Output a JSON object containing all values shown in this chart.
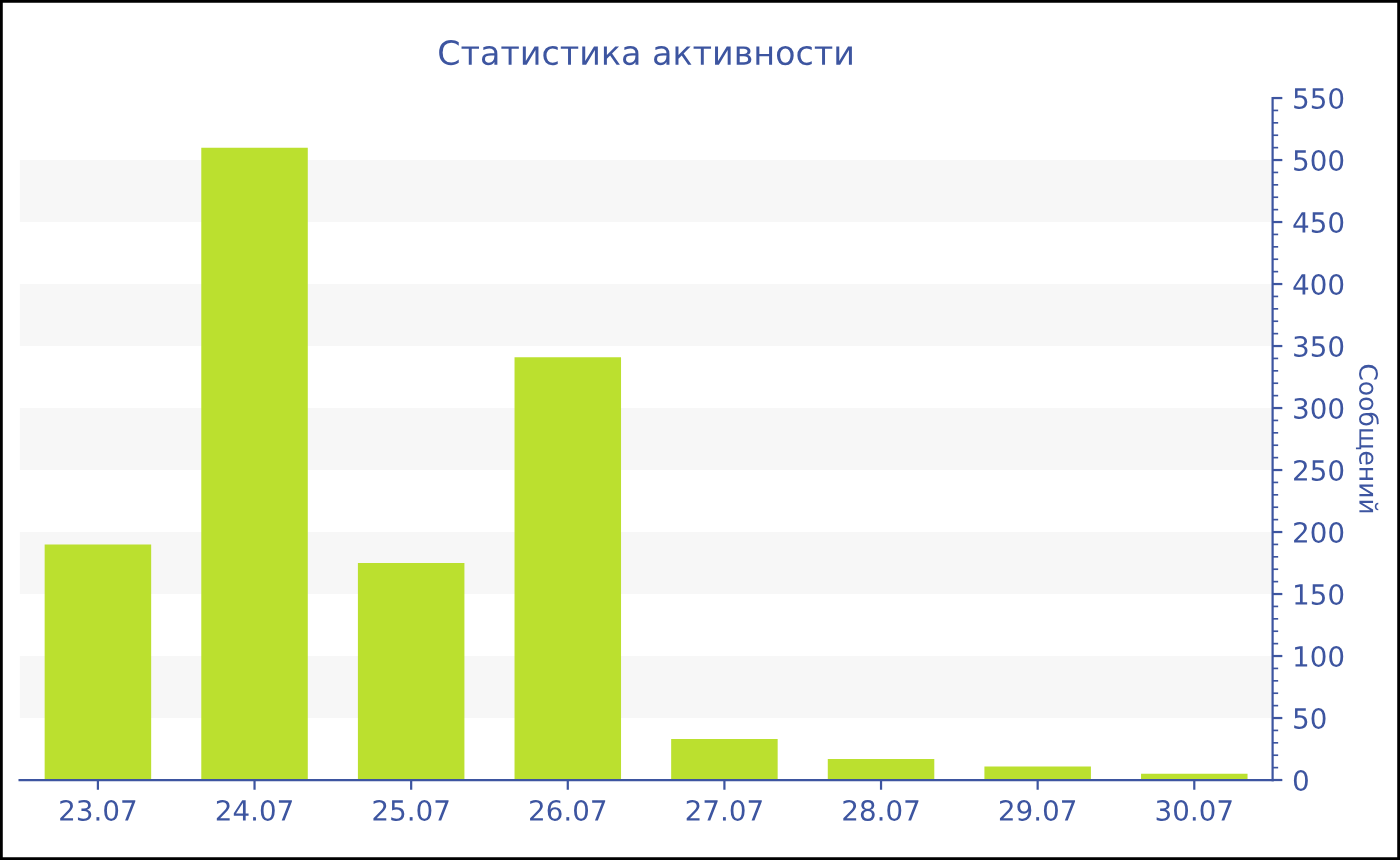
{
  "chart_data": {
    "type": "bar",
    "title": "Статистика активности",
    "ylabel": "Сообщений",
    "categories": [
      "23.07",
      "24.07",
      "25.07",
      "26.07",
      "27.07",
      "28.07",
      "29.07",
      "30.07"
    ],
    "series": [
      {
        "color": "#bbe02f",
        "values": [
          190,
          510,
          175,
          341,
          33,
          17,
          11,
          5
        ]
      }
    ],
    "ylim": [
      0,
      550
    ],
    "yticks": [
      0,
      50,
      100,
      150,
      200,
      250,
      300,
      350,
      400,
      450,
      500,
      550
    ],
    "bands": [
      {
        "axis": "y",
        "from": 50,
        "to": 100,
        "color": "#f7f7f7"
      },
      {
        "axis": "y",
        "from": 150,
        "to": 200,
        "color": "#f7f7f7"
      },
      {
        "axis": "y",
        "from": 250,
        "to": 300,
        "color": "#f7f7f7"
      },
      {
        "axis": "y",
        "from": 350,
        "to": 400,
        "color": "#f7f7f7"
      },
      {
        "axis": "y",
        "from": 450,
        "to": 500,
        "color": "#f7f7f7"
      }
    ],
    "grid": false,
    "legend": false
  }
}
